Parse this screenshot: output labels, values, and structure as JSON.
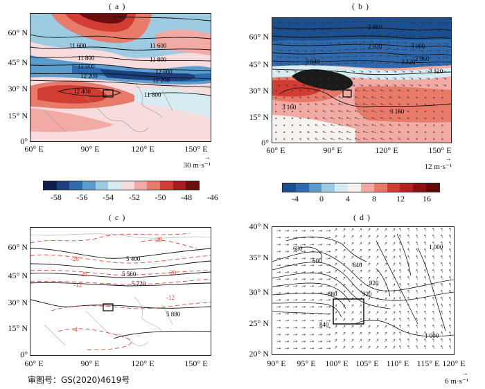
{
  "panels": {
    "a": {
      "label": "( a )",
      "lat_ticks": [
        "60° N",
        "45° N",
        "30° N",
        "15° N",
        "0°"
      ],
      "lon_ticks": [
        "60° E",
        "90° E",
        "120° E",
        "150° E"
      ],
      "contour_labels": [
        "11 600",
        "11 600",
        "11 800",
        "11 800",
        "12 000",
        "12 000",
        "12 200",
        "12 200",
        "12 400",
        "11 800"
      ],
      "ref_arrow": "30 m·s⁻¹",
      "colorbar": {
        "ticks": [
          "-58",
          "-56",
          "-54",
          "-52",
          "-50",
          "-48",
          "-46"
        ],
        "colors": [
          "#0b1e4e",
          "#1c3f7f",
          "#2e6aad",
          "#5b9ccd",
          "#9dcbe2",
          "#d7ecf2",
          "#f6dcdc",
          "#f2aba4",
          "#e87a6a",
          "#d23d33",
          "#a51c1c",
          "#6b0e0e"
        ]
      }
    },
    "b": {
      "label": "( b )",
      "lat_ticks": [
        "60° N",
        "45° N",
        "30° N",
        "15° N",
        "0°"
      ],
      "lon_ticks": [
        "60° E",
        "90° E",
        "120° E",
        "150° E"
      ],
      "contour_labels": [
        "2 880",
        "2 920",
        "3 000",
        "2 960",
        "3 040",
        "3 120",
        "3 120",
        "3 160",
        "3 160"
      ],
      "ref_arrow": "12 m·s⁻¹",
      "colorbar": {
        "ticks": [
          "-4",
          "0",
          "4",
          "8",
          "12",
          "16"
        ],
        "colors": [
          "#1c4f8f",
          "#2e6aad",
          "#5b9ccd",
          "#9dcbe2",
          "#d7ecf2",
          "#f7f2ee",
          "#f2aba4",
          "#e87a6a",
          "#d23d33",
          "#b0231f",
          "#8a1111",
          "#600a0a"
        ]
      }
    },
    "c": {
      "label": "( c )",
      "lat_ticks": [
        "60° N",
        "45° N",
        "30° N",
        "15° N",
        "0°"
      ],
      "lon_ticks": [
        "60° E",
        "90° E",
        "120° E",
        "150° E"
      ],
      "black_labels": [
        "5 400",
        "5 560",
        "5 720",
        "5 880"
      ],
      "red_labels": [
        "-28",
        "-28",
        "-20",
        "-20",
        "-12",
        "-12",
        "-4"
      ]
    },
    "d": {
      "label": "( d )",
      "lat_ticks": [
        "40° N",
        "35° N",
        "30° N",
        "25° N",
        "20° N"
      ],
      "lon_ticks": [
        "90° E",
        "95° E",
        "100° E",
        "105° E",
        "110° E",
        "115° E",
        "120° E"
      ],
      "contour_labels": [
        "680",
        "600",
        "840",
        "920",
        "680",
        "920",
        "840",
        "1 000",
        "1 000"
      ],
      "ref_arrow": "6 m·s⁻¹"
    }
  },
  "footer": "审图号：GS(2020)4619号"
}
